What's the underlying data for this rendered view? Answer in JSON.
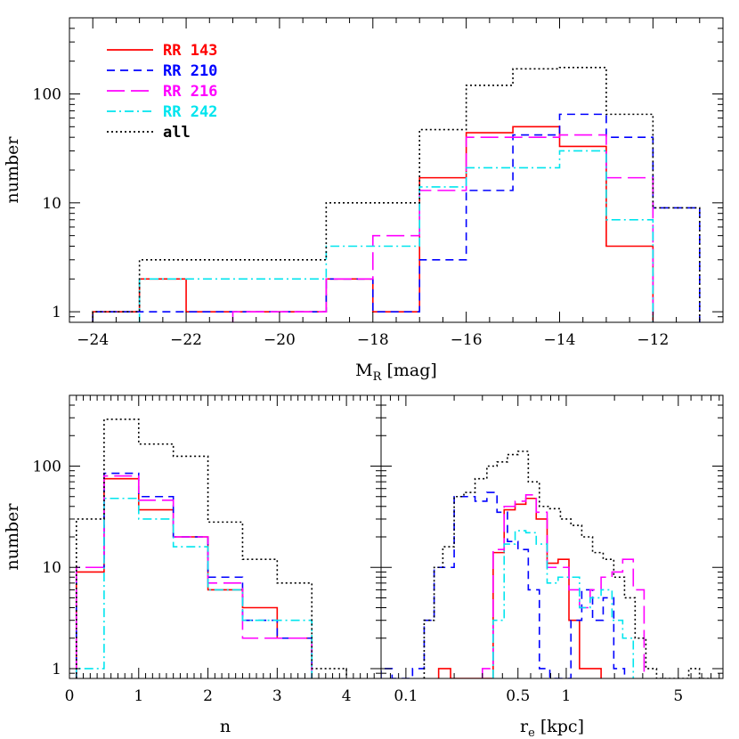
{
  "chart_data": [
    {
      "type": "histogram",
      "id": "mr",
      "xlabel": "M",
      "xlabel_sub": "R",
      "xlabel_unit": "[mag]",
      "ylabel": "number",
      "xscale": "linear",
      "yscale": "log",
      "xlim": [
        -24.5,
        -10.5
      ],
      "ylim": [
        0.8,
        500
      ],
      "xticks": [
        -24,
        -22,
        -20,
        -18,
        -16,
        -14,
        -12
      ],
      "xtick_labels": [
        "−24",
        "−22",
        "−20",
        "−18",
        "−16",
        "−14",
        "−12"
      ],
      "yticks": [
        1,
        10,
        100
      ],
      "ytick_labels": [
        "1",
        "10",
        "100"
      ],
      "legend_position": "top-left",
      "series": [
        {
          "name": "RR 143",
          "color": "#ff0000",
          "dash": "solid",
          "edges": [
            -24,
            -23,
            -22,
            -21,
            -20,
            -19,
            -18,
            -17,
            -16,
            -15,
            -14,
            -13,
            -12
          ],
          "counts": [
            1,
            2,
            1,
            1,
            1,
            2,
            1,
            17,
            44,
            50,
            33,
            4
          ]
        },
        {
          "name": "RR 210",
          "color": "#0000ff",
          "dash": "short",
          "edges": [
            -24,
            -23,
            -22,
            -21,
            -20,
            -19,
            -18,
            -17,
            -16,
            -15,
            -14,
            -13,
            -12,
            -11
          ],
          "counts": [
            1,
            1,
            1,
            1,
            1,
            2,
            1,
            3,
            13,
            42,
            65,
            40,
            9
          ]
        },
        {
          "name": "RR 216",
          "color": "#ff00ff",
          "dash": "long",
          "edges": [
            -21,
            -20,
            -19,
            -18,
            -17,
            -16,
            -15,
            -14,
            -13,
            -12
          ],
          "counts": [
            1,
            1,
            2,
            5,
            13,
            40,
            40,
            42,
            17
          ]
        },
        {
          "name": "RR 242",
          "color": "#00e5ee",
          "dash": "dashdot",
          "edges": [
            -23,
            -22,
            -21,
            -20,
            -19,
            -18,
            -17,
            -16,
            -15,
            -14,
            -13,
            -12
          ],
          "counts": [
            2,
            2,
            2,
            2,
            4,
            4,
            14,
            21,
            21,
            30,
            7
          ]
        },
        {
          "name": "all",
          "color": "#000000",
          "dash": "dotted",
          "edges": [
            -24,
            -23,
            -22,
            -21,
            -20,
            -19,
            -18,
            -17,
            -16,
            -15,
            -14,
            -13,
            -12,
            -11
          ],
          "counts": [
            1,
            3,
            3,
            3,
            3,
            10,
            10,
            47,
            120,
            170,
            175,
            65,
            9
          ]
        }
      ]
    },
    {
      "type": "histogram",
      "id": "n",
      "xlabel": "n",
      "ylabel": "number",
      "xscale": "linear",
      "yscale": "log",
      "xlim": [
        0,
        4.5
      ],
      "ylim": [
        0.8,
        500
      ],
      "xticks": [
        0,
        1,
        2,
        3,
        4
      ],
      "xtick_labels": [
        "0",
        "1",
        "2",
        "3",
        "4"
      ],
      "yticks": [
        1,
        10,
        100
      ],
      "ytick_labels": [
        "1",
        "10",
        "100"
      ],
      "series": [
        {
          "name": "RR 143",
          "color": "#ff0000",
          "dash": "solid",
          "edges": [
            0.1,
            0.5,
            1.0,
            1.5,
            2.0,
            2.5,
            3.0,
            3.5
          ],
          "counts": [
            9,
            75,
            37,
            20,
            6,
            4,
            2
          ]
        },
        {
          "name": "RR 210",
          "color": "#0000ff",
          "dash": "short",
          "edges": [
            0.1,
            0.5,
            1.0,
            1.5,
            2.0,
            2.5,
            3.0,
            3.5
          ],
          "counts": [
            10,
            85,
            50,
            20,
            8,
            3,
            2
          ]
        },
        {
          "name": "RR 216",
          "color": "#ff00ff",
          "dash": "long",
          "edges": [
            0.1,
            0.5,
            1.0,
            1.5,
            2.0,
            2.5,
            3.0,
            3.5
          ],
          "counts": [
            10,
            80,
            46,
            20,
            7,
            2,
            2
          ]
        },
        {
          "name": "RR 242",
          "color": "#00e5ee",
          "dash": "dashdot",
          "edges": [
            0.1,
            0.5,
            1.0,
            1.5,
            2.0,
            2.5,
            3.0,
            3.5
          ],
          "counts": [
            1,
            48,
            30,
            16,
            6,
            3,
            3
          ]
        },
        {
          "name": "all",
          "color": "#000000",
          "dash": "dotted",
          "edges": [
            0.1,
            0.5,
            1.0,
            1.5,
            2.0,
            2.5,
            3.0,
            3.5,
            4.0
          ],
          "counts": [
            30,
            290,
            165,
            125,
            28,
            12,
            7,
            1
          ]
        }
      ]
    },
    {
      "type": "histogram",
      "id": "re",
      "xlabel": "r",
      "xlabel_sub": "e",
      "xlabel_unit": "[kpc]",
      "xscale": "log",
      "yscale": "log",
      "xlim": [
        0.07,
        9.5
      ],
      "ylim": [
        0.8,
        500
      ],
      "xticks": [
        0.1,
        0.5,
        1,
        5
      ],
      "xtick_labels": [
        "0.1",
        "0.5",
        "1",
        "5"
      ],
      "yticks": [
        1,
        10,
        100
      ],
      "series": [
        {
          "name": "RR 143",
          "color": "#ff0000",
          "dash": "solid",
          "edges": [
            0.16,
            0.19,
            0.22,
            0.26,
            0.3,
            0.35,
            0.41,
            0.48,
            0.56,
            0.65,
            0.76,
            0.89,
            1.04,
            1.21,
            1.41,
            1.65
          ],
          "counts": [
            1,
            0,
            0,
            0,
            0,
            14,
            37,
            42,
            48,
            30,
            11,
            12,
            3,
            1,
            1
          ]
        },
        {
          "name": "RR 210",
          "color": "#0000ff",
          "dash": "short",
          "edges": [
            0.07,
            0.082,
            0.095,
            0.11,
            0.13,
            0.15,
            0.17,
            0.2,
            0.23,
            0.27,
            0.32,
            0.37,
            0.43,
            0.5,
            0.58,
            0.68,
            0.79,
            0.92,
            1.07,
            1.25,
            1.46,
            1.7,
            1.98,
            2.31
          ],
          "counts": [
            1,
            0,
            0,
            1,
            3,
            10,
            10,
            50,
            50,
            45,
            55,
            35,
            18,
            15,
            6,
            1,
            0,
            0,
            3,
            6,
            3,
            5,
            1
          ]
        },
        {
          "name": "RR 216",
          "color": "#ff00ff",
          "dash": "long",
          "edges": [
            0.3,
            0.35,
            0.41,
            0.48,
            0.56,
            0.65,
            0.76,
            0.89,
            1.04,
            1.21,
            1.41,
            1.65,
            1.93,
            2.25,
            2.62,
            3.06
          ],
          "counts": [
            1,
            15,
            40,
            45,
            52,
            35,
            10,
            10,
            6,
            4,
            6,
            8,
            9,
            12,
            6
          ]
        },
        {
          "name": "RR 242",
          "color": "#00e5ee",
          "dash": "dashdot",
          "edges": [
            0.35,
            0.41,
            0.48,
            0.56,
            0.65,
            0.76,
            0.89,
            1.04,
            1.21,
            1.41,
            1.65,
            1.93,
            2.25,
            2.62
          ],
          "counts": [
            3,
            17,
            23,
            22,
            17,
            7,
            8,
            8,
            4,
            5,
            6,
            3,
            2
          ]
        },
        {
          "name": "all",
          "color": "#000000",
          "dash": "dotted",
          "edges": [
            0.13,
            0.15,
            0.17,
            0.2,
            0.23,
            0.27,
            0.32,
            0.37,
            0.43,
            0.5,
            0.58,
            0.68,
            0.79,
            0.92,
            1.07,
            1.25,
            1.46,
            1.7,
            1.98,
            2.31,
            2.69,
            3.14,
            3.66,
            4.27,
            4.98,
            5.81,
            6.78,
            7.91
          ],
          "counts": [
            3,
            10,
            16,
            50,
            55,
            75,
            100,
            110,
            130,
            140,
            70,
            40,
            38,
            30,
            26,
            20,
            14,
            12,
            8,
            5,
            2,
            1,
            0,
            0,
            0,
            1,
            0
          ]
        }
      ]
    }
  ]
}
